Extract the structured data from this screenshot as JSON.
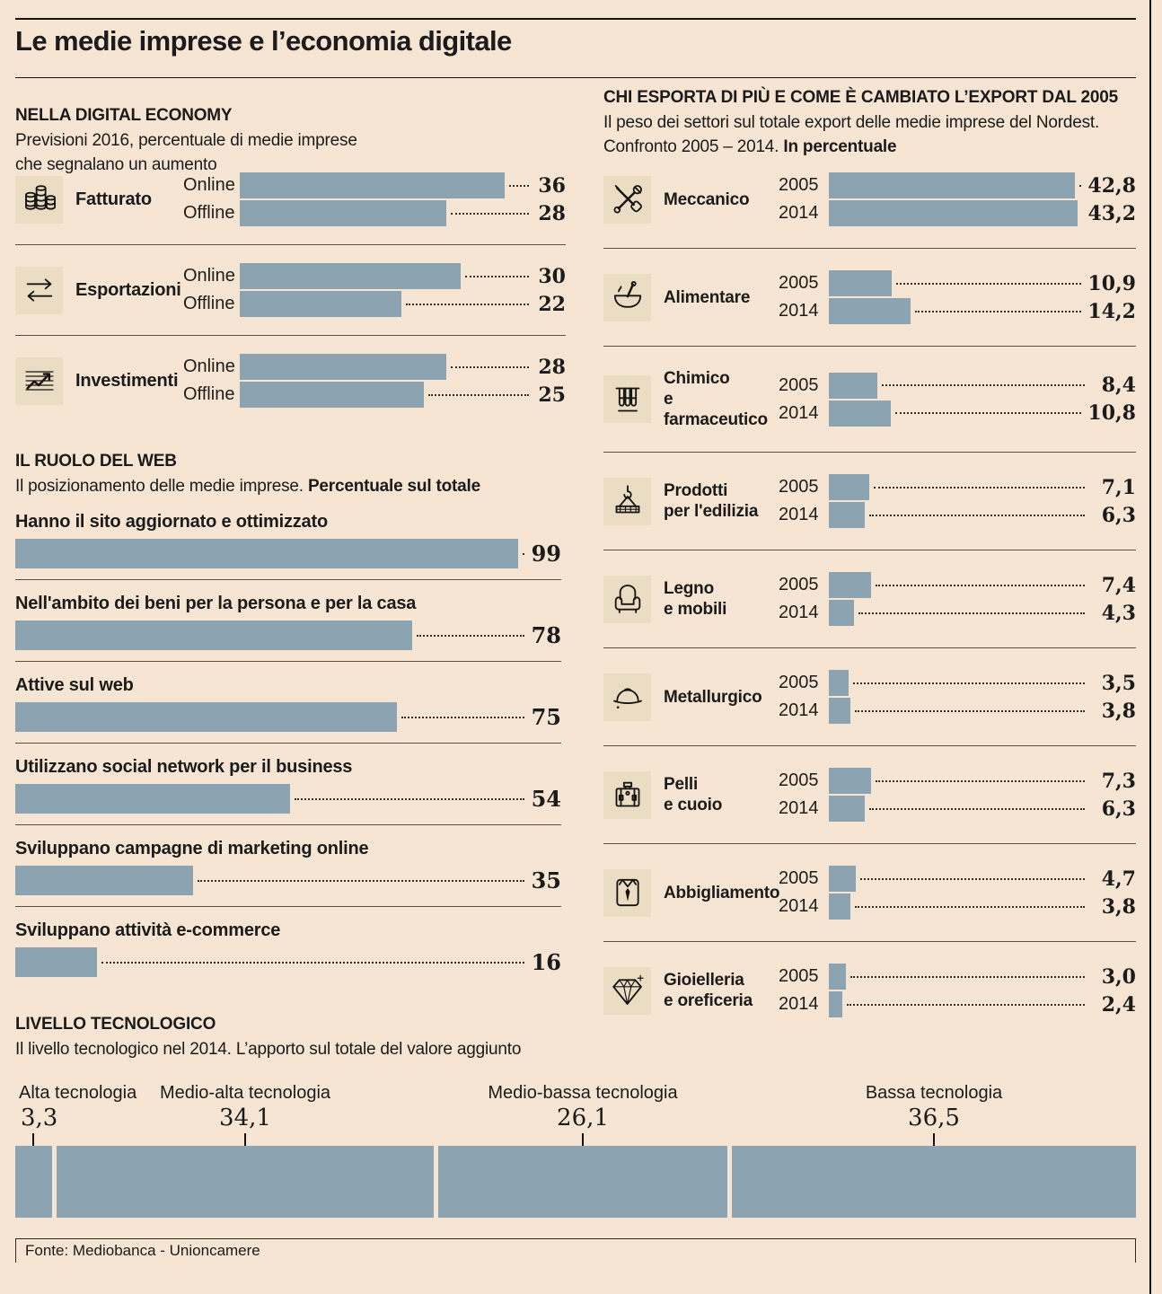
{
  "page": {
    "title": "Le medie imprese e l’economia digitale",
    "source": "Fonte: Mediobanca - Unioncamere"
  },
  "colors": {
    "background": "#f5e5d2",
    "bar": "#8ca4b1",
    "icon_box": "#eaddc3",
    "ink": "#1b1b1b"
  },
  "chart_data": [
    {
      "id": "digital_economy",
      "type": "bar",
      "title": "NELLA DIGITAL ECONOMY",
      "subtitle_lines": [
        "Previsioni 2016, percentuale di medie imprese",
        "che segnalano un aumento"
      ],
      "unit": "%",
      "categories": [
        "Online",
        "Offline"
      ],
      "xlim": [
        0,
        40
      ],
      "grid": false,
      "groups": [
        {
          "label": "Fatturato",
          "icon": "coins-icon",
          "series": [
            {
              "name": "Online",
              "value": 36,
              "display": "36"
            },
            {
              "name": "Offline",
              "value": 28,
              "display": "28"
            }
          ]
        },
        {
          "label": "Esportazioni",
          "icon": "arrows-icon",
          "series": [
            {
              "name": "Online",
              "value": 30,
              "display": "30"
            },
            {
              "name": "Offline",
              "value": 22,
              "display": "22"
            }
          ]
        },
        {
          "label": "Investimenti",
          "icon": "chart-icon",
          "series": [
            {
              "name": "Online",
              "value": 28,
              "display": "28"
            },
            {
              "name": "Offline",
              "value": 25,
              "display": "25"
            }
          ]
        }
      ]
    },
    {
      "id": "export_sectors",
      "type": "bar",
      "title": "CHI ESPORTA DI PIÙ E COME È CAMBIATO L’EXPORT DAL 2005",
      "subtitle_lines": [
        "Il peso dei settori sul totale export delle medie imprese del Nordest.",
        "Confronto 2005 – 2014."
      ],
      "subtitle_bold": "In percentuale",
      "unit": "%",
      "categories": [
        "2005",
        "2014"
      ],
      "xlim": [
        0,
        45
      ],
      "grid": false,
      "groups": [
        {
          "label": "Meccanico",
          "icon": "tools-icon",
          "series": [
            {
              "name": "2005",
              "value": 42.8,
              "display": "42,8"
            },
            {
              "name": "2014",
              "value": 43.2,
              "display": "43,2"
            }
          ]
        },
        {
          "label": "Alimentare",
          "icon": "mortar-icon",
          "series": [
            {
              "name": "2005",
              "value": 10.9,
              "display": "10,9"
            },
            {
              "name": "2014",
              "value": 14.2,
              "display": "14,2"
            }
          ]
        },
        {
          "label": "Chimico",
          "label2": "e farmaceutico",
          "icon": "test-tubes-icon",
          "series": [
            {
              "name": "2005",
              "value": 8.4,
              "display": "8,4"
            },
            {
              "name": "2014",
              "value": 10.8,
              "display": "10,8"
            }
          ]
        },
        {
          "label": "Prodotti",
          "label2": "per l'edilizia",
          "icon": "crane-icon",
          "series": [
            {
              "name": "2005",
              "value": 7.1,
              "display": "7,1"
            },
            {
              "name": "2014",
              "value": 6.3,
              "display": "6,3"
            }
          ]
        },
        {
          "label": "Legno",
          "label2": "e mobili",
          "icon": "armchair-icon",
          "series": [
            {
              "name": "2005",
              "value": 7.4,
              "display": "7,4"
            },
            {
              "name": "2014",
              "value": 4.3,
              "display": "4,3"
            }
          ]
        },
        {
          "label": "Metallurgico",
          "icon": "helmet-icon",
          "series": [
            {
              "name": "2005",
              "value": 3.5,
              "display": "3,5"
            },
            {
              "name": "2014",
              "value": 3.8,
              "display": "3,8"
            }
          ]
        },
        {
          "label": "Pelli",
          "label2": "e cuoio",
          "icon": "bag-icon",
          "series": [
            {
              "name": "2005",
              "value": 7.3,
              "display": "7,3"
            },
            {
              "name": "2014",
              "value": 6.3,
              "display": "6,3"
            }
          ]
        },
        {
          "label": "Abbigliamento",
          "icon": "shirt-icon",
          "series": [
            {
              "name": "2005",
              "value": 4.7,
              "display": "4,7"
            },
            {
              "name": "2014",
              "value": 3.8,
              "display": "3,8"
            }
          ]
        },
        {
          "label": "Gioielleria",
          "label2": "e oreficeria",
          "icon": "diamond-icon",
          "series": [
            {
              "name": "2005",
              "value": 3.0,
              "display": "3,0"
            },
            {
              "name": "2014",
              "value": 2.4,
              "display": "2,4"
            }
          ]
        }
      ]
    },
    {
      "id": "web_role",
      "type": "bar",
      "title": "IL RUOLO DEL WEB",
      "subtitle": "Il posizionamento delle medie imprese.",
      "subtitle_bold": "Percentuale sul totale",
      "unit": "%",
      "xlim": [
        0,
        100
      ],
      "grid": false,
      "items": [
        {
          "label": "Hanno il sito aggiornato e ottimizzato",
          "value": 99,
          "display": "99"
        },
        {
          "label": "Nell'ambito dei beni per la persona e per la casa",
          "value": 78,
          "display": "78"
        },
        {
          "label": "Attive sul web",
          "value": 75,
          "display": "75"
        },
        {
          "label": "Utilizzano social network per il business",
          "value": 54,
          "display": "54"
        },
        {
          "label": "Sviluppano campagne di marketing online",
          "value": 35,
          "display": "35"
        },
        {
          "label": "Sviluppano attività e-commerce",
          "value": 16,
          "display": "16"
        }
      ]
    },
    {
      "id": "tech_level",
      "type": "stacked-bar",
      "title": "LIVELLO TECNOLOGICO",
      "subtitle": "Il livello tecnologico nel 2014. L’apporto sul totale del valore aggiunto",
      "unit": "%",
      "total": 100,
      "segments": [
        {
          "label": "Alta tecnologia",
          "value": 3.3,
          "display": "3,3"
        },
        {
          "label": "Medio-alta tecnologia",
          "value": 34.1,
          "display": "34,1"
        },
        {
          "label": "Medio-bassa tecnologia",
          "value": 26.1,
          "display": "26,1"
        },
        {
          "label": "Bassa tecnologia",
          "value": 36.5,
          "display": "36,5"
        }
      ]
    }
  ]
}
